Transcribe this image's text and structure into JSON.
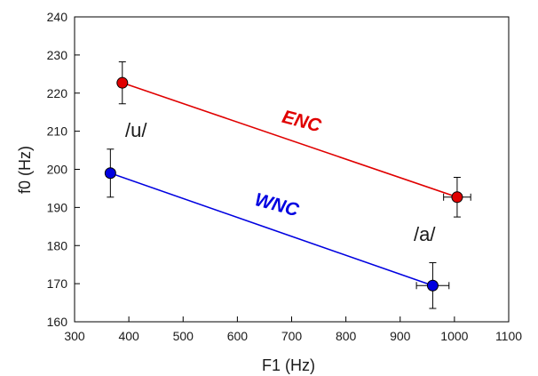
{
  "chart_data": {
    "type": "scatter",
    "xlabel": "F1 (Hz)",
    "ylabel": "f0 (Hz)",
    "xlim": [
      300,
      1100
    ],
    "ylim": [
      160,
      240
    ],
    "xticks": [
      300,
      400,
      500,
      600,
      700,
      800,
      900,
      1000,
      1100
    ],
    "yticks": [
      160,
      170,
      180,
      190,
      200,
      210,
      220,
      230,
      240
    ],
    "grid": false,
    "series": [
      {
        "name": "ENC",
        "color": "#e00000",
        "points": [
          {
            "x": 388,
            "y": 222.7,
            "xerr": 6,
            "yerr": 5.5
          },
          {
            "x": 1005,
            "y": 192.7,
            "xerr": 25,
            "yerr": 5.2
          }
        ]
      },
      {
        "name": "WNC",
        "color": "#0000e0",
        "points": [
          {
            "x": 366,
            "y": 199.0,
            "xerr": 8,
            "yerr": 6.3
          },
          {
            "x": 960,
            "y": 169.5,
            "xerr": 30,
            "yerr": 6.0
          }
        ]
      }
    ],
    "annotations": [
      "/u/",
      "/a/"
    ]
  }
}
